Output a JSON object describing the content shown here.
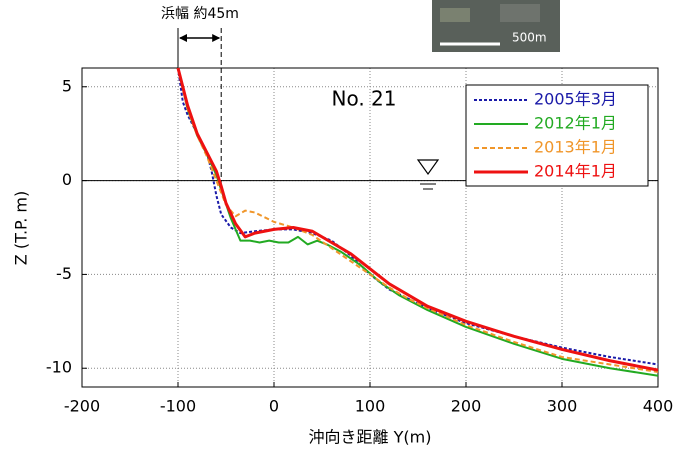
{
  "chart_data": {
    "type": "line",
    "label": "No. 21",
    "xlabel": "沖向き距離 Y(m)",
    "ylabel": "Z (T.P. m)",
    "annotation": "浜幅 約45m",
    "beach_width_range": [
      -100,
      -55
    ],
    "map_scale": "500m",
    "xlim": [
      -200,
      400
    ],
    "xticks": [
      -200,
      -100,
      0,
      100,
      200,
      300,
      400
    ],
    "ylim": [
      -11,
      6
    ],
    "yticks": [
      -10,
      -5,
      0,
      5
    ],
    "grid": true,
    "zero_line": true,
    "legend": "upper right",
    "series": [
      {
        "name": "2005年3月",
        "color": "#1a1aa8",
        "dash": "dotted",
        "x": [
          -100,
          -95,
          -90,
          -80,
          -70,
          -65,
          -60,
          -55,
          -45,
          -35,
          -20,
          0,
          20,
          40,
          60,
          80,
          100,
          120,
          140,
          160,
          200,
          250,
          300,
          350,
          400
        ],
        "values": [
          6,
          4.2,
          3.5,
          2.5,
          1.5,
          0.5,
          -0.8,
          -1.8,
          -2.5,
          -2.8,
          -2.7,
          -2.6,
          -2.6,
          -2.8,
          -3.2,
          -4.0,
          -5.0,
          -5.8,
          -6.3,
          -6.8,
          -7.6,
          -8.3,
          -8.9,
          -9.4,
          -9.8
        ]
      },
      {
        "name": "2012年1月",
        "color": "#22aa22",
        "dash": "solid",
        "x": [
          -100,
          -90,
          -80,
          -70,
          -60,
          -55,
          -45,
          -35,
          -25,
          -15,
          -5,
          5,
          15,
          25,
          35,
          45,
          55,
          70,
          90,
          110,
          130,
          160,
          200,
          250,
          300,
          350,
          400
        ],
        "values": [
          6,
          3.8,
          2.4,
          1.4,
          0.3,
          -0.5,
          -2,
          -3.2,
          -3.2,
          -3.3,
          -3.2,
          -3.3,
          -3.3,
          -3.0,
          -3.4,
          -3.2,
          -3.4,
          -3.8,
          -4.5,
          -5.4,
          -6.1,
          -6.9,
          -7.8,
          -8.7,
          -9.5,
          -10.0,
          -10.4
        ]
      },
      {
        "name": "2013年1月",
        "color": "#f0962a",
        "dash": "dashed",
        "x": [
          -100,
          -90,
          -80,
          -70,
          -60,
          -50,
          -40,
          -30,
          -20,
          0,
          20,
          40,
          60,
          80,
          100,
          120,
          140,
          160,
          200,
          250,
          300,
          350,
          400
        ],
        "values": [
          6,
          3.8,
          2.4,
          1.3,
          0.0,
          -1.3,
          -1.9,
          -1.6,
          -1.7,
          -2.2,
          -2.5,
          -2.9,
          -3.6,
          -4.3,
          -5.0,
          -5.7,
          -6.3,
          -6.8,
          -7.7,
          -8.6,
          -9.4,
          -9.8,
          -10.2
        ]
      },
      {
        "name": "2014年1月",
        "color": "#ee1111",
        "dash": "solid",
        "x": [
          -100,
          -90,
          -80,
          -70,
          -60,
          -55,
          -50,
          -40,
          -30,
          -20,
          -10,
          0,
          20,
          40,
          60,
          80,
          100,
          120,
          140,
          160,
          200,
          250,
          300,
          350,
          400
        ],
        "values": [
          6,
          4,
          2.5,
          1.5,
          0.5,
          -0.3,
          -1.2,
          -2.3,
          -3.0,
          -2.8,
          -2.7,
          -2.6,
          -2.5,
          -2.7,
          -3.3,
          -3.9,
          -4.7,
          -5.5,
          -6.1,
          -6.7,
          -7.5,
          -8.3,
          -9.0,
          -9.6,
          -10.1
        ]
      }
    ]
  }
}
